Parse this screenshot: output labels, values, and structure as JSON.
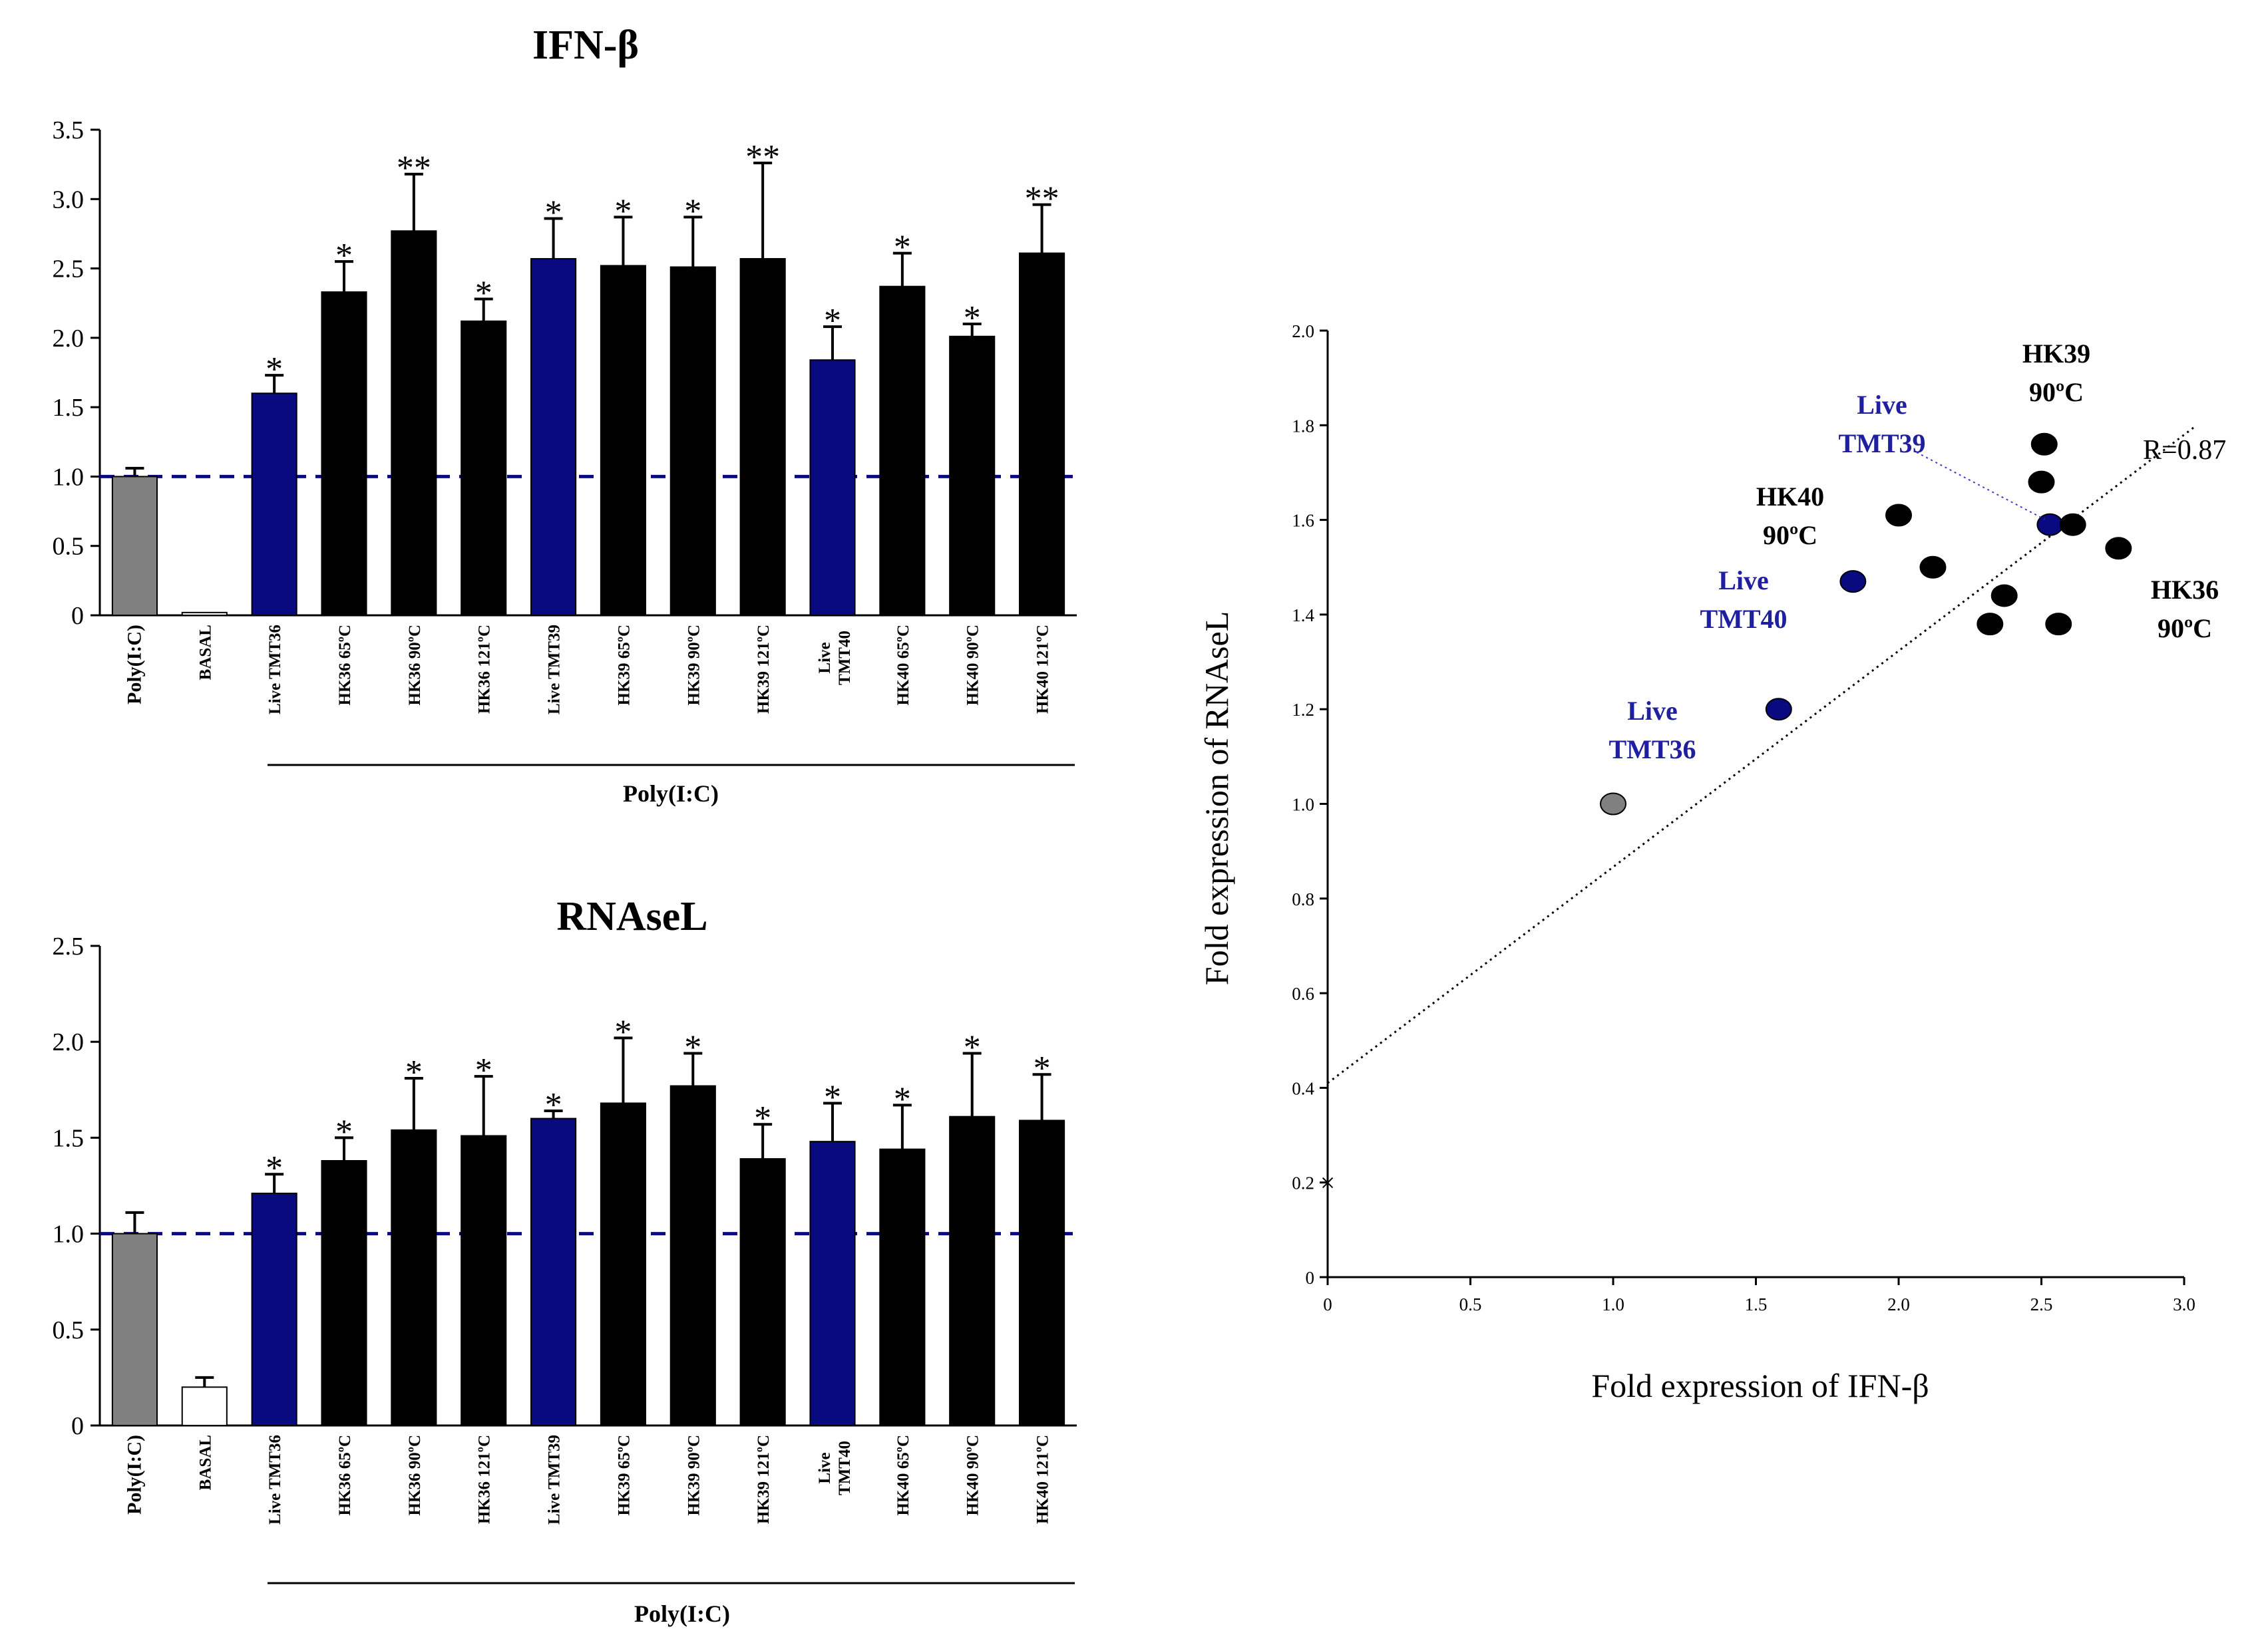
{
  "chart_data": [
    {
      "type": "bar",
      "title": "IFN-β",
      "ylim": [
        0,
        3.5
      ],
      "yticks": [
        "0",
        "0.5",
        "1.0",
        "1.5",
        "2.0",
        "2.5",
        "3.0",
        "3.5"
      ],
      "categories": [
        "Poly(I:C)",
        "BASAL",
        "Live TMT36",
        "HK36 65ºC",
        "HK36 90ºC",
        "HK36 121ºC",
        "Live TMT39",
        "HK39 65ºC",
        "HK39 90ºC",
        "HK39 121ºC",
        "Live TMT40",
        "HK40 65ºC",
        "HK40 90ºC",
        "HK40 121ºC"
      ],
      "values": [
        1.0,
        0.02,
        1.6,
        2.33,
        2.77,
        2.12,
        2.57,
        2.52,
        2.51,
        2.57,
        1.84,
        2.37,
        2.01,
        2.61
      ],
      "errors": [
        0.06,
        0.0,
        0.13,
        0.22,
        0.41,
        0.16,
        0.29,
        0.35,
        0.36,
        0.69,
        0.24,
        0.24,
        0.09,
        0.35
      ],
      "significance": [
        "",
        "",
        "*",
        "*",
        "**",
        "*",
        "*",
        "*",
        "*",
        "**",
        "*",
        "*",
        "*",
        "**"
      ],
      "bar_colors": [
        "#808080",
        "#ffffff",
        "#0a0a80",
        "#000000",
        "#000000",
        "#000000",
        "#0a0a80",
        "#000000",
        "#000000",
        "#000000",
        "#0a0a80",
        "#000000",
        "#000000",
        "#000000"
      ],
      "reference_line": 1.0,
      "reference_color": "#0a0a80",
      "group_label": "Poly(I:C)"
    },
    {
      "type": "bar",
      "title": "RNAseL",
      "ylim": [
        0,
        2.5
      ],
      "yticks": [
        "0",
        "0.5",
        "1.0",
        "1.5",
        "2.0",
        "2.5"
      ],
      "categories": [
        "Poly(I:C)",
        "BASAL",
        "Live TMT36",
        "HK36 65ºC",
        "HK36 90ºC",
        "HK36 121ºC",
        "Live TMT39",
        "HK39 65ºC",
        "HK39 90ºC",
        "HK39 121ºC",
        "Live TMT40",
        "HK40 65ºC",
        "HK40 90ºC",
        "HK40 121ºC"
      ],
      "values": [
        1.0,
        0.2,
        1.21,
        1.38,
        1.54,
        1.51,
        1.6,
        1.68,
        1.77,
        1.39,
        1.48,
        1.44,
        1.61,
        1.59
      ],
      "errors": [
        0.11,
        0.05,
        0.1,
        0.12,
        0.27,
        0.31,
        0.04,
        0.34,
        0.17,
        0.18,
        0.2,
        0.23,
        0.33,
        0.24
      ],
      "significance": [
        "",
        "",
        "*",
        "*",
        "*",
        "*",
        "*",
        "*",
        "*",
        "*",
        "*",
        "*",
        "*",
        "*"
      ],
      "bar_colors": [
        "#808080",
        "#ffffff",
        "#0a0a80",
        "#000000",
        "#000000",
        "#000000",
        "#0a0a80",
        "#000000",
        "#000000",
        "#000000",
        "#0a0a80",
        "#000000",
        "#000000",
        "#000000"
      ],
      "reference_line": 1.0,
      "reference_color": "#0a0a80",
      "group_label": "Poly(I:C)"
    },
    {
      "type": "scatter",
      "xlabel": "Fold expression of IFN-β",
      "ylabel": "Fold expression of RNAseL",
      "xlim": [
        0,
        3.0
      ],
      "ylim": [
        0,
        2.0
      ],
      "xticks": [
        "0",
        "0.5",
        "1.0",
        "1.5",
        "2.0",
        "2.5",
        "3.0"
      ],
      "yticks": [
        "0",
        "0.2",
        "0.4",
        "0.6",
        "0.8",
        "1.0",
        "1.2",
        "1.4",
        "1.6",
        "1.8",
        "2.0"
      ],
      "points": [
        {
          "x": 1.0,
          "y": 1.0,
          "color": "#808080"
        },
        {
          "x": 1.58,
          "y": 1.2,
          "color": "#0a0a80"
        },
        {
          "x": 1.84,
          "y": 1.47,
          "color": "#0a0a80"
        },
        {
          "x": 2.53,
          "y": 1.59,
          "color": "#0a0a80"
        },
        {
          "x": 2.0,
          "y": 1.61,
          "color": "#000000"
        },
        {
          "x": 2.12,
          "y": 1.5,
          "color": "#000000"
        },
        {
          "x": 2.32,
          "y": 1.38,
          "color": "#000000"
        },
        {
          "x": 2.37,
          "y": 1.44,
          "color": "#000000"
        },
        {
          "x": 2.5,
          "y": 1.68,
          "color": "#000000"
        },
        {
          "x": 2.51,
          "y": 1.76,
          "color": "#000000"
        },
        {
          "x": 2.56,
          "y": 1.38,
          "color": "#000000"
        },
        {
          "x": 2.61,
          "y": 1.59,
          "color": "#000000"
        },
        {
          "x": 2.77,
          "y": 1.54,
          "color": "#000000"
        }
      ],
      "trendline": {
        "x0": 0,
        "y0": 0.41,
        "x1": 2.77,
        "y1": 1.72
      },
      "trend_label": "R=0.87",
      "origin_marker": {
        "x": 0,
        "y": 0.2,
        "symbol": "×"
      },
      "annotations": [
        {
          "lines": [
            "HK39",
            "90ºC"
          ],
          "color": "#000000"
        },
        {
          "lines": [
            "Live",
            "TMT39"
          ],
          "color": "#1f1fa0"
        },
        {
          "lines": [
            "HK40",
            "90ºC"
          ],
          "color": "#000000"
        },
        {
          "lines": [
            "Live",
            "TMT40"
          ],
          "color": "#1f1fa0"
        },
        {
          "lines": [
            "HK36",
            "90ºC"
          ],
          "color": "#000000"
        },
        {
          "lines": [
            "Live",
            "TMT36"
          ],
          "color": "#1f1fa0"
        }
      ]
    }
  ]
}
